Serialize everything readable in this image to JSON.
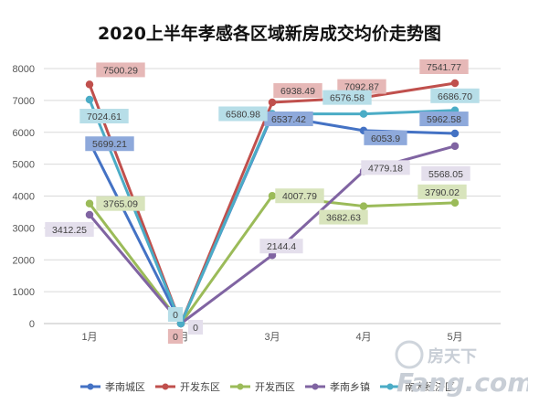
{
  "title": "2020上半年孝感各区域新房成交均价走势图",
  "chart_data": {
    "type": "line",
    "title": "2020上半年孝感各区域新房成交均价走势图",
    "xlabel": "",
    "ylabel": "",
    "categories": [
      "1月",
      "2月",
      "3月",
      "4月",
      "5月"
    ],
    "ylim": [
      0,
      8000
    ],
    "yticks": [
      0,
      1000,
      2000,
      3000,
      4000,
      5000,
      6000,
      7000,
      8000
    ],
    "grid": true,
    "legend": "bottom",
    "series": [
      {
        "name": "孝南城区",
        "color": "#4472C4",
        "label_bg": "#8EA9DB",
        "values": [
          5699.21,
          0,
          6537.42,
          6053.9,
          5962.58
        ],
        "labels": [
          "5699.21",
          "",
          "6537.42",
          "6053.9",
          "5962.58"
        ]
      },
      {
        "name": "开发东区",
        "color": "#C0504D",
        "label_bg": "#E6B8B7",
        "values": [
          7500.29,
          0,
          6938.49,
          7092.87,
          7541.77
        ],
        "labels": [
          "7500.29",
          "0",
          "6938.49",
          "7092.87",
          "7541.77"
        ]
      },
      {
        "name": "开发西区",
        "color": "#9BBB59",
        "label_bg": "#D8E4BC",
        "values": [
          3765.09,
          0,
          4007.79,
          3682.63,
          3790.02
        ],
        "labels": [
          "3765.09",
          "",
          "4007.79",
          "3682.63",
          "3790.02"
        ]
      },
      {
        "name": "孝南乡镇",
        "color": "#8064A2",
        "label_bg": "#E4DFEC",
        "values": [
          3412.25,
          0,
          2144.4,
          4779.18,
          5568.05
        ],
        "labels": [
          "3412.25",
          "0",
          "2144.4",
          "4779.18",
          "5568.05"
        ]
      },
      {
        "name": "南大经济区",
        "color": "#4BACC6",
        "label_bg": "#B7DEE8",
        "values": [
          7024.61,
          0,
          6580.98,
          6576.58,
          6686.7
        ],
        "labels": [
          "7024.61",
          "0",
          "6580.98",
          "6576.58",
          "6686.70"
        ]
      }
    ]
  },
  "watermark": {
    "cn": "房天下",
    "en": "Fang.com"
  }
}
